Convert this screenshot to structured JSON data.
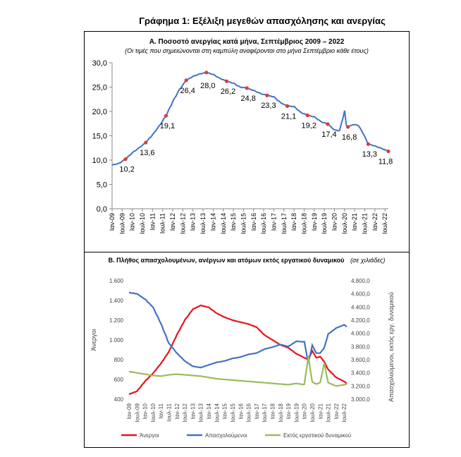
{
  "title": "Γράφημα 1: Εξέλιξη μεγεθών απασχόλησης και ανεργίας",
  "chart_data": [
    {
      "type": "line",
      "title": "Α. Ποσοστό ανεργίας κατά μήνα, Σεπτέμβριος 2009 – 2022",
      "subtitle": "(Οι τιμές που σημειώνονται στη καμπύλη αναφέρονται στο μήνα Σεπτέμβριο κάθε έτους)",
      "y_ticks": [
        "0,0",
        "5,0",
        "10,0",
        "15,0",
        "20,0",
        "25,0",
        "30,0"
      ],
      "ylim": [
        0,
        30
      ],
      "x_tick_labels": [
        "Ιαν-09",
        "Ιουλ-09",
        "Ιαν-10",
        "Ιουλ-10",
        "Ιαν-11",
        "Ιουλ-11",
        "Ιαν-12",
        "Ιουλ-12",
        "Ιαν-13",
        "Ιουλ-13",
        "Ιαν-14",
        "Ιουλ-14",
        "Ιαν-15",
        "Ιουλ-15",
        "Ιαν-16",
        "Ιουλ-16",
        "Ιαν-17",
        "Ιουλ-17",
        "Ιαν-18",
        "Ιουλ-18",
        "Ιαν-19",
        "Ιουλ-19",
        "Ιαν-20",
        "Ιουλ-20",
        "Ιαν-21",
        "Ιουλ-21",
        "Ιαν-22",
        "Ιουλ-22"
      ],
      "series": [
        {
          "color": "#4472c4",
          "points": [
            [
              "2009-01",
              9.0
            ],
            [
              "2009-05",
              9.3
            ],
            [
              "2009-09",
              10.2
            ],
            [
              "2010-01",
              11.5
            ],
            [
              "2010-05",
              12.5
            ],
            [
              "2010-09",
              13.6
            ],
            [
              "2011-01",
              15.2
            ],
            [
              "2011-05",
              17.0
            ],
            [
              "2011-09",
              19.1
            ],
            [
              "2012-01",
              22.0
            ],
            [
              "2012-05",
              24.5
            ],
            [
              "2012-09",
              26.4
            ],
            [
              "2013-01",
              27.2
            ],
            [
              "2013-05",
              27.7
            ],
            [
              "2013-09",
              28.0
            ],
            [
              "2014-01",
              27.6
            ],
            [
              "2014-05",
              26.8
            ],
            [
              "2014-09",
              26.2
            ],
            [
              "2015-01",
              25.8
            ],
            [
              "2015-05",
              25.0
            ],
            [
              "2015-09",
              24.8
            ],
            [
              "2016-01",
              24.3
            ],
            [
              "2016-05",
              23.7
            ],
            [
              "2016-09",
              23.3
            ],
            [
              "2017-01",
              23.0
            ],
            [
              "2017-05",
              21.8
            ],
            [
              "2017-09",
              21.1
            ],
            [
              "2018-01",
              21.0
            ],
            [
              "2018-05",
              19.8
            ],
            [
              "2018-09",
              19.2
            ],
            [
              "2019-01",
              18.9
            ],
            [
              "2019-05",
              17.9
            ],
            [
              "2019-09",
              17.4
            ],
            [
              "2020-01",
              16.2
            ],
            [
              "2020-04",
              16.0
            ],
            [
              "2020-07",
              20.1
            ],
            [
              "2020-08",
              17.2
            ],
            [
              "2020-09",
              16.8
            ],
            [
              "2020-12",
              17.3
            ],
            [
              "2021-03",
              17.2
            ],
            [
              "2021-06",
              15.5
            ],
            [
              "2021-09",
              13.3
            ],
            [
              "2022-01",
              12.9
            ],
            [
              "2022-05",
              12.4
            ],
            [
              "2022-09",
              11.8
            ]
          ]
        }
      ],
      "annotations": [
        {
          "x": "2009-09",
          "y": 10.2,
          "label": "10,2"
        },
        {
          "x": "2010-09",
          "y": 13.6,
          "label": "13,6"
        },
        {
          "x": "2011-09",
          "y": 19.1,
          "label": "19,1"
        },
        {
          "x": "2012-09",
          "y": 26.4,
          "label": "26,4"
        },
        {
          "x": "2013-09",
          "y": 28.0,
          "label": "28,0"
        },
        {
          "x": "2014-09",
          "y": 26.2,
          "label": "26,2"
        },
        {
          "x": "2015-09",
          "y": 24.8,
          "label": "24,8"
        },
        {
          "x": "2016-09",
          "y": 23.3,
          "label": "23,3"
        },
        {
          "x": "2017-09",
          "y": 21.1,
          "label": "21,1"
        },
        {
          "x": "2018-09",
          "y": 19.2,
          "label": "19,2"
        },
        {
          "x": "2019-09",
          "y": 17.4,
          "label": "17,4"
        },
        {
          "x": "2020-09",
          "y": 16.8,
          "label": "16,8"
        },
        {
          "x": "2021-09",
          "y": 13.3,
          "label": "13,3"
        },
        {
          "x": "2022-09",
          "y": 11.8,
          "label": "11,8"
        }
      ],
      "marker_color": "#e03c31",
      "grid": false
    },
    {
      "type": "line",
      "title": "Β. Πλήθος απασχολουμένων, ανέργων και ατόμων εκτός εργατικού δυναμικού",
      "unit_note": "(σε χιλιάδες)",
      "ylabel_left": "Άνεργοι",
      "ylabel_right": "Απασχολούμενοι, εκτός εργ. δυναμικού",
      "left_ticks": [
        "400",
        "600",
        "800",
        "1.000",
        "1.200",
        "1.400",
        "1.600"
      ],
      "left_ylim": [
        400,
        1600
      ],
      "right_ticks": [
        "3.000,0",
        "3.200,0",
        "3.400,0",
        "3.600,0",
        "3.800,0",
        "4.000,0",
        "4.200,0",
        "4.400,0",
        "4.600,0",
        "4.800,0"
      ],
      "right_ylim": [
        3000,
        4800
      ],
      "x_tick_labels": [
        "Ιαν-09",
        "Ιουλ-09",
        "Ιαν-10",
        "Ιουλ-10",
        "Ιαν-11",
        "Ιουλ-11",
        "Ιαν-12",
        "Ιουλ-12",
        "Ιαν-13",
        "Ιουλ-13",
        "Ιαν-14",
        "Ιουλ-14",
        "Ιαν-15",
        "Ιουλ-15",
        "Ιαν-16",
        "Ιουλ-16",
        "Ιαν-17",
        "Ιουλ-17",
        "Ιαν-18",
        "Ιουλ-18",
        "Ιαν-19",
        "Ιουλ-19",
        "Ιαν-20",
        "Ιουλ-20",
        "Ιαν-21",
        "Ιουλ-21",
        "Ιαν-22",
        "Ιουλ-22"
      ],
      "series": [
        {
          "name": "Άνεργοι",
          "color": "#e8141b",
          "axis": "left",
          "points": [
            [
              "2009-01",
              450
            ],
            [
              "2009-07",
              480
            ],
            [
              "2010-01",
              580
            ],
            [
              "2010-07",
              660
            ],
            [
              "2011-01",
              760
            ],
            [
              "2011-07",
              880
            ],
            [
              "2012-01",
              1050
            ],
            [
              "2012-07",
              1200
            ],
            [
              "2013-01",
              1310
            ],
            [
              "2013-07",
              1350
            ],
            [
              "2014-01",
              1330
            ],
            [
              "2014-07",
              1270
            ],
            [
              "2015-01",
              1230
            ],
            [
              "2015-07",
              1200
            ],
            [
              "2016-01",
              1180
            ],
            [
              "2016-07",
              1160
            ],
            [
              "2017-01",
              1130
            ],
            [
              "2017-07",
              1050
            ],
            [
              "2018-01",
              1000
            ],
            [
              "2018-07",
              950
            ],
            [
              "2019-01",
              920
            ],
            [
              "2019-07",
              860
            ],
            [
              "2020-01",
              820
            ],
            [
              "2020-04",
              800
            ],
            [
              "2020-07",
              890
            ],
            [
              "2020-10",
              820
            ],
            [
              "2021-01",
              830
            ],
            [
              "2021-04",
              780
            ],
            [
              "2021-07",
              700
            ],
            [
              "2022-01",
              620
            ],
            [
              "2022-07",
              580
            ],
            [
              "2022-09",
              560
            ]
          ]
        },
        {
          "name": "Απασχολούμενοι",
          "color": "#4472c4",
          "axis": "right",
          "points": [
            [
              "2009-01",
              4620
            ],
            [
              "2009-07",
              4600
            ],
            [
              "2010-01",
              4520
            ],
            [
              "2010-07",
              4400
            ],
            [
              "2011-01",
              4150
            ],
            [
              "2011-07",
              3850
            ],
            [
              "2012-01",
              3700
            ],
            [
              "2012-07",
              3580
            ],
            [
              "2013-01",
              3500
            ],
            [
              "2013-07",
              3480
            ],
            [
              "2014-01",
              3520
            ],
            [
              "2014-07",
              3560
            ],
            [
              "2015-01",
              3580
            ],
            [
              "2015-07",
              3620
            ],
            [
              "2016-01",
              3640
            ],
            [
              "2016-07",
              3680
            ],
            [
              "2017-01",
              3700
            ],
            [
              "2017-07",
              3760
            ],
            [
              "2018-01",
              3790
            ],
            [
              "2018-07",
              3830
            ],
            [
              "2019-01",
              3800
            ],
            [
              "2019-07",
              3880
            ],
            [
              "2020-01",
              3870
            ],
            [
              "2020-04",
              3550
            ],
            [
              "2020-07",
              3820
            ],
            [
              "2020-10",
              3700
            ],
            [
              "2021-01",
              3700
            ],
            [
              "2021-04",
              3780
            ],
            [
              "2021-07",
              3990
            ],
            [
              "2022-01",
              4080
            ],
            [
              "2022-07",
              4130
            ],
            [
              "2022-09",
              4100
            ]
          ]
        },
        {
          "name": "Εκτός εργατικού δυναμικού",
          "color": "#9bbb59",
          "axis": "right",
          "points": [
            [
              "2009-01",
              3420
            ],
            [
              "2009-07",
              3400
            ],
            [
              "2010-01",
              3380
            ],
            [
              "2010-07",
              3360
            ],
            [
              "2011-01",
              3350
            ],
            [
              "2011-07",
              3370
            ],
            [
              "2012-01",
              3380
            ],
            [
              "2012-07",
              3370
            ],
            [
              "2013-01",
              3360
            ],
            [
              "2013-07",
              3350
            ],
            [
              "2014-01",
              3330
            ],
            [
              "2014-07",
              3310
            ],
            [
              "2015-01",
              3300
            ],
            [
              "2015-07",
              3290
            ],
            [
              "2016-01",
              3280
            ],
            [
              "2016-07",
              3270
            ],
            [
              "2017-01",
              3260
            ],
            [
              "2017-07",
              3250
            ],
            [
              "2018-01",
              3240
            ],
            [
              "2018-07",
              3230
            ],
            [
              "2019-01",
              3220
            ],
            [
              "2019-07",
              3240
            ],
            [
              "2020-01",
              3220
            ],
            [
              "2020-04",
              3650
            ],
            [
              "2020-07",
              3260
            ],
            [
              "2020-10",
              3230
            ],
            [
              "2021-01",
              3250
            ],
            [
              "2021-04",
              3550
            ],
            [
              "2021-07",
              3250
            ],
            [
              "2022-01",
              3200
            ],
            [
              "2022-07",
              3220
            ],
            [
              "2022-09",
              3230
            ]
          ]
        }
      ],
      "legend": "bottom",
      "grid": false
    }
  ]
}
